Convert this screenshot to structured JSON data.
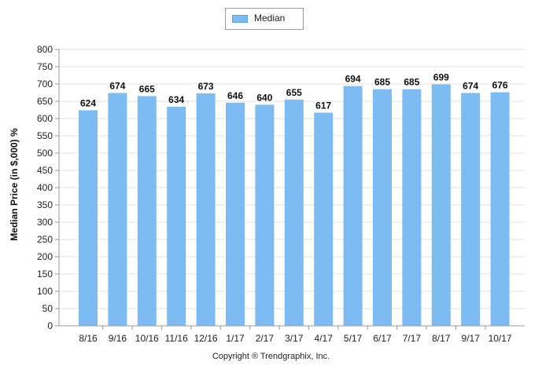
{
  "chart_data": {
    "type": "bar",
    "categories": [
      "8/16",
      "9/16",
      "10/16",
      "11/16",
      "12/16",
      "1/17",
      "2/17",
      "3/17",
      "4/17",
      "5/17",
      "6/17",
      "7/17",
      "8/17",
      "9/17",
      "10/17"
    ],
    "series": [
      {
        "name": "Median",
        "values": [
          624,
          674,
          665,
          634,
          673,
          646,
          640,
          655,
          617,
          694,
          685,
          685,
          699,
          674,
          676
        ]
      }
    ],
    "ylabel": "Median Price (in $,000) %",
    "xlabel": "",
    "ylim": [
      0,
      800
    ],
    "yticks": [
      0,
      50,
      100,
      150,
      200,
      250,
      300,
      350,
      400,
      450,
      500,
      550,
      600,
      650,
      700,
      750,
      800
    ],
    "grid": true,
    "legend_position": "top-center",
    "bar_color": "#7cbcf2",
    "data_labels": true
  },
  "footer": {
    "copyright": "Copyright ® Trendgraphix, Inc."
  }
}
